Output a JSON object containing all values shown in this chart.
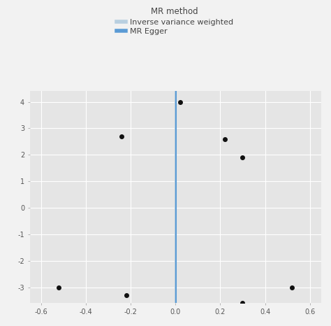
{
  "legend_title": "MR method",
  "legend_entries": [
    "Inverse variance weighted",
    "MR Egger"
  ],
  "legend_colors": [
    "#b8cfe0",
    "#5b9bd5"
  ],
  "background_color": "#e5e5e5",
  "plot_bg_color": "#e5e5e5",
  "fig_bg_color": "#f2f2f2",
  "grid_color": "#ffffff",
  "dot_color": "#111111",
  "ivw_line_color": "#b8cfe0",
  "egger_line_color": "#5b9bd5",
  "xlim": [
    -0.65,
    0.65
  ],
  "ylim": [
    -3.6,
    4.4
  ],
  "xticks": [
    -0.6,
    -0.4,
    -0.2,
    0.0,
    0.2,
    0.4,
    0.6
  ],
  "ytick_values": [
    -3,
    -2,
    -1,
    0,
    1,
    2,
    3,
    4
  ],
  "ytick_labels": [
    "-3",
    "-2",
    "-1",
    "0",
    "1",
    "2",
    "3",
    "4"
  ],
  "points_x": [
    0.02,
    -0.24,
    0.22,
    0.3,
    -0.52,
    -0.22,
    0.52,
    0.3
  ],
  "points_y": [
    4.0,
    2.7,
    2.6,
    1.9,
    -3.0,
    -3.3,
    -3.0,
    -3.6
  ],
  "tick_fontsize": 7,
  "legend_fontsize": 8,
  "legend_title_fontsize": 8.5
}
